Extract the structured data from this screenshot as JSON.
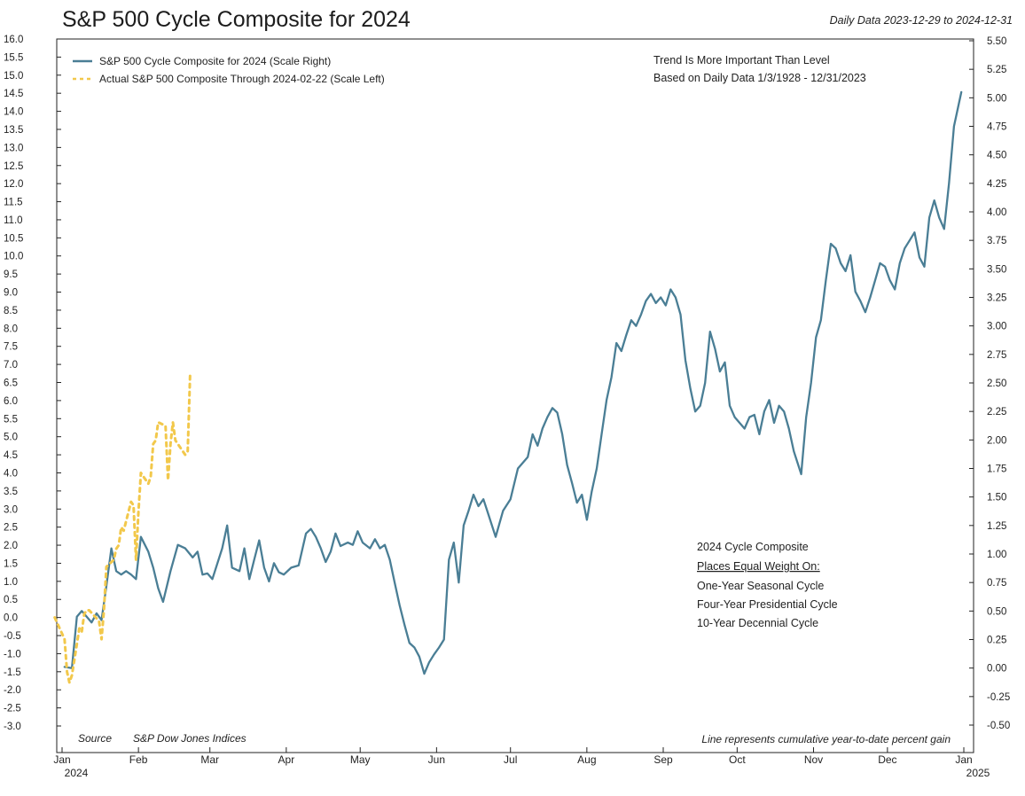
{
  "header": {
    "title": "S&P 500 Cycle Composite for 2024",
    "date_range": "Daily Data 2023-12-29 to 2024-12-31"
  },
  "chart_data": {
    "type": "line",
    "title": "S&P 500 Cycle Composite for 2024",
    "subtitle": "Daily Data 2023-12-29 to 2024-12-31",
    "xlabel": "",
    "ylabel_left": "",
    "ylabel_right": "",
    "x_range": [
      "2024-01-01",
      "2025-01-01"
    ],
    "ylim_left": [
      -3.0,
      16.0
    ],
    "ylim_right": [
      -0.5,
      5.5
    ],
    "x_ticks": [
      {
        "label": "Jan",
        "sub": "2024",
        "date": "2024-01-01"
      },
      {
        "label": "Feb",
        "date": "2024-02-01"
      },
      {
        "label": "Mar",
        "date": "2024-03-01"
      },
      {
        "label": "Apr",
        "date": "2024-04-01"
      },
      {
        "label": "May",
        "date": "2024-05-01"
      },
      {
        "label": "Jun",
        "date": "2024-06-01"
      },
      {
        "label": "Jul",
        "date": "2024-07-01"
      },
      {
        "label": "Aug",
        "date": "2024-08-01"
      },
      {
        "label": "Sep",
        "date": "2024-09-01"
      },
      {
        "label": "Oct",
        "date": "2024-10-01"
      },
      {
        "label": "Nov",
        "date": "2024-11-01"
      },
      {
        "label": "Dec",
        "date": "2024-12-01"
      },
      {
        "label": "Jan",
        "sub": "2025",
        "date": "2025-01-01"
      }
    ],
    "y_ticks_left": [
      "16.0",
      "15.5",
      "15.0",
      "14.5",
      "14.0",
      "13.5",
      "13.0",
      "12.5",
      "12.0",
      "11.5",
      "11.0",
      "10.5",
      "10.0",
      "9.5",
      "9.0",
      "8.5",
      "8.0",
      "7.5",
      "7.0",
      "6.5",
      "6.0",
      "5.5",
      "5.0",
      "4.5",
      "4.0",
      "3.5",
      "3.0",
      "2.5",
      "2.0",
      "1.5",
      "1.0",
      "0.5",
      "0.0",
      "-0.5",
      "-1.0",
      "-1.5",
      "-2.0",
      "-2.5",
      "-3.0"
    ],
    "y_ticks_right": [
      "5.50",
      "5.25",
      "5.00",
      "4.75",
      "4.50",
      "4.25",
      "4.00",
      "3.75",
      "3.50",
      "3.25",
      "3.00",
      "2.75",
      "2.50",
      "2.25",
      "2.00",
      "1.75",
      "1.50",
      "1.25",
      "1.00",
      "0.75",
      "0.50",
      "0.25",
      "0.00",
      "-0.25",
      "-0.50"
    ],
    "legend_position": "top-left",
    "grid": false,
    "series": [
      {
        "name": "S&P 500 Cycle Composite for 2024 (Scale Right)",
        "axis": "right",
        "style": "solid",
        "color": "#4a7e95",
        "points": [
          [
            "2024-01-02",
            0.01
          ],
          [
            "2024-01-05",
            0.0
          ],
          [
            "2024-01-07",
            0.45
          ],
          [
            "2024-01-09",
            0.5
          ],
          [
            "2024-01-11",
            0.45
          ],
          [
            "2024-01-13",
            0.4
          ],
          [
            "2024-01-15",
            0.48
          ],
          [
            "2024-01-17",
            0.42
          ],
          [
            "2024-01-19",
            0.72
          ],
          [
            "2024-01-21",
            1.05
          ],
          [
            "2024-01-23",
            0.85
          ],
          [
            "2024-01-25",
            0.82
          ],
          [
            "2024-01-27",
            0.85
          ],
          [
            "2024-01-29",
            0.82
          ],
          [
            "2024-01-31",
            0.78
          ],
          [
            "2024-02-02",
            1.15
          ],
          [
            "2024-02-05",
            1.02
          ],
          [
            "2024-02-07",
            0.88
          ],
          [
            "2024-02-09",
            0.7
          ],
          [
            "2024-02-11",
            0.58
          ],
          [
            "2024-02-14",
            0.85
          ],
          [
            "2024-02-17",
            1.08
          ],
          [
            "2024-02-20",
            1.05
          ],
          [
            "2024-02-23",
            0.97
          ],
          [
            "2024-02-25",
            1.02
          ],
          [
            "2024-02-27",
            0.82
          ],
          [
            "2024-02-29",
            0.83
          ],
          [
            "2024-03-02",
            0.78
          ],
          [
            "2024-03-06",
            1.05
          ],
          [
            "2024-03-08",
            1.25
          ],
          [
            "2024-03-10",
            0.88
          ],
          [
            "2024-03-13",
            0.85
          ],
          [
            "2024-03-15",
            1.05
          ],
          [
            "2024-03-17",
            0.78
          ],
          [
            "2024-03-19",
            0.95
          ],
          [
            "2024-03-21",
            1.12
          ],
          [
            "2024-03-23",
            0.88
          ],
          [
            "2024-03-25",
            0.76
          ],
          [
            "2024-03-27",
            0.92
          ],
          [
            "2024-03-29",
            0.84
          ],
          [
            "2024-03-31",
            0.82
          ],
          [
            "2024-04-03",
            0.88
          ],
          [
            "2024-04-06",
            0.9
          ],
          [
            "2024-04-09",
            1.18
          ],
          [
            "2024-04-11",
            1.22
          ],
          [
            "2024-04-13",
            1.15
          ],
          [
            "2024-04-15",
            1.05
          ],
          [
            "2024-04-17",
            0.93
          ],
          [
            "2024-04-19",
            1.02
          ],
          [
            "2024-04-21",
            1.18
          ],
          [
            "2024-04-23",
            1.07
          ],
          [
            "2024-04-26",
            1.1
          ],
          [
            "2024-04-28",
            1.08
          ],
          [
            "2024-04-30",
            1.2
          ],
          [
            "2024-05-02",
            1.1
          ],
          [
            "2024-05-05",
            1.05
          ],
          [
            "2024-05-07",
            1.13
          ],
          [
            "2024-05-09",
            1.05
          ],
          [
            "2024-05-11",
            1.08
          ],
          [
            "2024-05-13",
            0.95
          ],
          [
            "2024-05-15",
            0.75
          ],
          [
            "2024-05-17",
            0.55
          ],
          [
            "2024-05-19",
            0.38
          ],
          [
            "2024-05-21",
            0.22
          ],
          [
            "2024-05-23",
            0.18
          ],
          [
            "2024-05-25",
            0.1
          ],
          [
            "2024-05-27",
            -0.05
          ],
          [
            "2024-05-29",
            0.05
          ],
          [
            "2024-05-31",
            0.12
          ],
          [
            "2024-06-02",
            0.18
          ],
          [
            "2024-06-04",
            0.25
          ],
          [
            "2024-06-06",
            0.95
          ],
          [
            "2024-06-08",
            1.1
          ],
          [
            "2024-06-10",
            0.75
          ],
          [
            "2024-06-12",
            1.25
          ],
          [
            "2024-06-14",
            1.38
          ],
          [
            "2024-06-16",
            1.52
          ],
          [
            "2024-06-18",
            1.42
          ],
          [
            "2024-06-20",
            1.48
          ],
          [
            "2024-06-22",
            1.35
          ],
          [
            "2024-06-25",
            1.15
          ],
          [
            "2024-06-28",
            1.38
          ],
          [
            "2024-07-01",
            1.48
          ],
          [
            "2024-07-04",
            1.75
          ],
          [
            "2024-07-06",
            1.8
          ],
          [
            "2024-07-08",
            1.85
          ],
          [
            "2024-07-10",
            2.05
          ],
          [
            "2024-07-12",
            1.95
          ],
          [
            "2024-07-14",
            2.1
          ],
          [
            "2024-07-16",
            2.2
          ],
          [
            "2024-07-18",
            2.28
          ],
          [
            "2024-07-20",
            2.24
          ],
          [
            "2024-07-22",
            2.05
          ],
          [
            "2024-07-24",
            1.78
          ],
          [
            "2024-07-26",
            1.62
          ],
          [
            "2024-07-28",
            1.45
          ],
          [
            "2024-07-30",
            1.52
          ],
          [
            "2024-08-01",
            1.3
          ],
          [
            "2024-08-03",
            1.55
          ],
          [
            "2024-08-05",
            1.75
          ],
          [
            "2024-08-07",
            2.05
          ],
          [
            "2024-08-09",
            2.35
          ],
          [
            "2024-08-11",
            2.55
          ],
          [
            "2024-08-13",
            2.85
          ],
          [
            "2024-08-15",
            2.78
          ],
          [
            "2024-08-17",
            2.92
          ],
          [
            "2024-08-19",
            3.05
          ],
          [
            "2024-08-21",
            3.0
          ],
          [
            "2024-08-23",
            3.1
          ],
          [
            "2024-08-25",
            3.22
          ],
          [
            "2024-08-27",
            3.28
          ],
          [
            "2024-08-29",
            3.2
          ],
          [
            "2024-08-31",
            3.25
          ],
          [
            "2024-09-02",
            3.18
          ],
          [
            "2024-09-04",
            3.32
          ],
          [
            "2024-09-06",
            3.25
          ],
          [
            "2024-09-08",
            3.1
          ],
          [
            "2024-09-10",
            2.7
          ],
          [
            "2024-09-12",
            2.45
          ],
          [
            "2024-09-14",
            2.25
          ],
          [
            "2024-09-16",
            2.3
          ],
          [
            "2024-09-18",
            2.5
          ],
          [
            "2024-09-20",
            2.95
          ],
          [
            "2024-09-22",
            2.8
          ],
          [
            "2024-09-24",
            2.6
          ],
          [
            "2024-09-26",
            2.68
          ],
          [
            "2024-09-28",
            2.3
          ],
          [
            "2024-09-30",
            2.2
          ],
          [
            "2024-10-02",
            2.15
          ],
          [
            "2024-10-04",
            2.1
          ],
          [
            "2024-10-06",
            2.2
          ],
          [
            "2024-10-08",
            2.22
          ],
          [
            "2024-10-10",
            2.05
          ],
          [
            "2024-10-12",
            2.25
          ],
          [
            "2024-10-14",
            2.35
          ],
          [
            "2024-10-16",
            2.15
          ],
          [
            "2024-10-18",
            2.3
          ],
          [
            "2024-10-20",
            2.25
          ],
          [
            "2024-10-22",
            2.1
          ],
          [
            "2024-10-24",
            1.9
          ],
          [
            "2024-10-27",
            1.7
          ],
          [
            "2024-10-29",
            2.2
          ],
          [
            "2024-10-31",
            2.5
          ],
          [
            "2024-11-02",
            2.9
          ],
          [
            "2024-11-04",
            3.05
          ],
          [
            "2024-11-06",
            3.4
          ],
          [
            "2024-11-08",
            3.72
          ],
          [
            "2024-11-10",
            3.68
          ],
          [
            "2024-11-12",
            3.55
          ],
          [
            "2024-11-14",
            3.48
          ],
          [
            "2024-11-16",
            3.62
          ],
          [
            "2024-11-18",
            3.3
          ],
          [
            "2024-11-20",
            3.22
          ],
          [
            "2024-11-22",
            3.12
          ],
          [
            "2024-11-24",
            3.25
          ],
          [
            "2024-11-26",
            3.4
          ],
          [
            "2024-11-28",
            3.55
          ],
          [
            "2024-11-30",
            3.52
          ],
          [
            "2024-12-02",
            3.4
          ],
          [
            "2024-12-04",
            3.32
          ],
          [
            "2024-12-06",
            3.55
          ],
          [
            "2024-12-08",
            3.68
          ],
          [
            "2024-12-10",
            3.75
          ],
          [
            "2024-12-12",
            3.82
          ],
          [
            "2024-12-14",
            3.6
          ],
          [
            "2024-12-16",
            3.52
          ],
          [
            "2024-12-18",
            3.95
          ],
          [
            "2024-12-20",
            4.1
          ],
          [
            "2024-12-22",
            3.95
          ],
          [
            "2024-12-24",
            3.85
          ],
          [
            "2024-12-26",
            4.25
          ],
          [
            "2024-12-28",
            4.75
          ],
          [
            "2024-12-31",
            5.05
          ]
        ]
      },
      {
        "name": "Actual S&P 500 Composite Through 2024-02-22 (Scale Left)",
        "axis": "left",
        "style": "dashed",
        "color": "#f2c84b",
        "points": [
          [
            "2023-12-29",
            0.0
          ],
          [
            "2024-01-02",
            -0.6
          ],
          [
            "2024-01-03",
            -1.5
          ],
          [
            "2024-01-04",
            -1.8
          ],
          [
            "2024-01-05",
            -1.6
          ],
          [
            "2024-01-08",
            -0.3
          ],
          [
            "2024-01-09",
            -0.4
          ],
          [
            "2024-01-10",
            0.1
          ],
          [
            "2024-01-11",
            0.2
          ],
          [
            "2024-01-12",
            0.2
          ],
          [
            "2024-01-16",
            -0.1
          ],
          [
            "2024-01-17",
            -0.6
          ],
          [
            "2024-01-18",
            0.2
          ],
          [
            "2024-01-19",
            1.4
          ],
          [
            "2024-01-22",
            1.6
          ],
          [
            "2024-01-23",
            1.9
          ],
          [
            "2024-01-24",
            2.0
          ],
          [
            "2024-01-25",
            2.5
          ],
          [
            "2024-01-26",
            2.4
          ],
          [
            "2024-01-29",
            3.2
          ],
          [
            "2024-01-30",
            3.1
          ],
          [
            "2024-01-31",
            1.6
          ],
          [
            "2024-02-01",
            2.9
          ],
          [
            "2024-02-02",
            4.0
          ],
          [
            "2024-02-05",
            3.7
          ],
          [
            "2024-02-06",
            3.9
          ],
          [
            "2024-02-07",
            4.8
          ],
          [
            "2024-02-08",
            4.9
          ],
          [
            "2024-02-09",
            5.4
          ],
          [
            "2024-02-12",
            5.3
          ],
          [
            "2024-02-13",
            3.8
          ],
          [
            "2024-02-14",
            4.8
          ],
          [
            "2024-02-15",
            5.4
          ],
          [
            "2024-02-16",
            4.9
          ],
          [
            "2024-02-20",
            4.5
          ],
          [
            "2024-02-21",
            4.6
          ],
          [
            "2024-02-22",
            6.8
          ]
        ]
      }
    ]
  },
  "legend": {
    "items": [
      {
        "label": "S&P 500 Cycle Composite for 2024 (Scale Right)",
        "color": "#4a7e95",
        "style": "solid"
      },
      {
        "label": "Actual S&P 500 Composite Through 2024-02-22 (Scale Left)",
        "color": "#f2c84b",
        "style": "dashed"
      }
    ]
  },
  "notes": {
    "trend_line1": "Trend Is More Important Than Level",
    "trend_line2": "Based on Daily Data 1/3/1928 - 12/31/2023",
    "composite_title": "2024 Cycle Composite",
    "composite_sub": "Places Equal Weight On:",
    "composite_items": [
      "One-Year Seasonal Cycle",
      "Four-Year Presidential Cycle",
      "10-Year Decennial Cycle"
    ]
  },
  "footer": {
    "source_label": "Source",
    "source_value": "S&P Dow Jones Indices",
    "line_note": "Line represents cumulative year-to-date percent gain"
  },
  "colors": {
    "cycle_line": "#4a7e95",
    "actual_line": "#f2c84b",
    "axis": "#222222"
  }
}
